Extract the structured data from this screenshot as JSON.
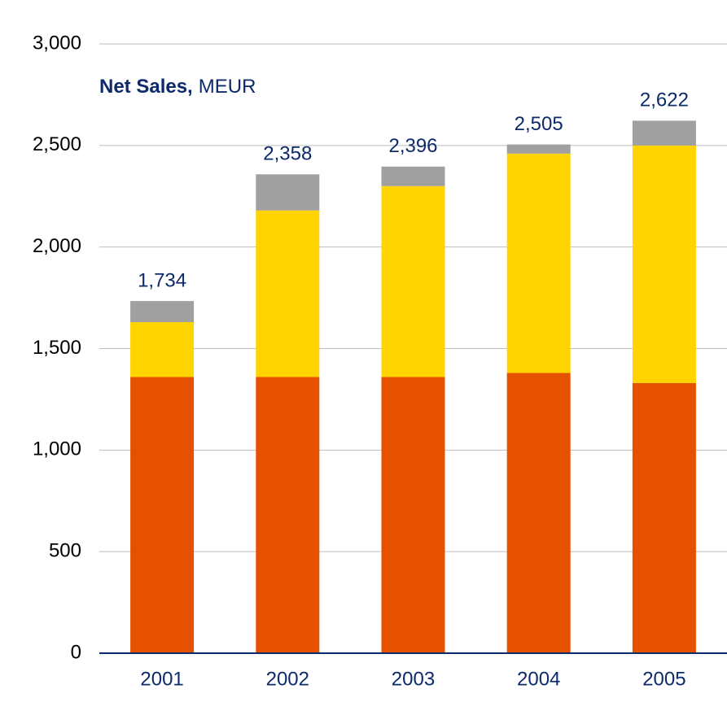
{
  "chart_data": {
    "type": "stacked_bar",
    "title_bold": "Net Sales,",
    "title": "MEUR",
    "categories": [
      "2001",
      "2002",
      "2003",
      "2004",
      "2005"
    ],
    "series": [
      {
        "color": "#e65100",
        "values": [
          1360,
          1360,
          1360,
          1380,
          1330
        ]
      },
      {
        "color": "#ffd400",
        "values": [
          270,
          820,
          940,
          1080,
          1170
        ]
      },
      {
        "color": "#a0a0a0",
        "values": [
          104,
          178,
          96,
          45,
          122
        ]
      }
    ],
    "totals": [
      1734,
      2358,
      2396,
      2505,
      2622
    ],
    "total_labels": [
      "1,734",
      "2,358",
      "2,396",
      "2,505",
      "2,622"
    ],
    "ylim": [
      0,
      3000
    ],
    "yticks": [
      0,
      500,
      {
        "value": 1000,
        "label": "1,000"
      },
      {
        "value": 1500,
        "label": "1,500"
      },
      {
        "value": 2000,
        "label": "2,000"
      },
      {
        "value": 2500,
        "label": "2,500"
      },
      {
        "value": 3000,
        "label": "3,000"
      }
    ],
    "grid": true
  }
}
